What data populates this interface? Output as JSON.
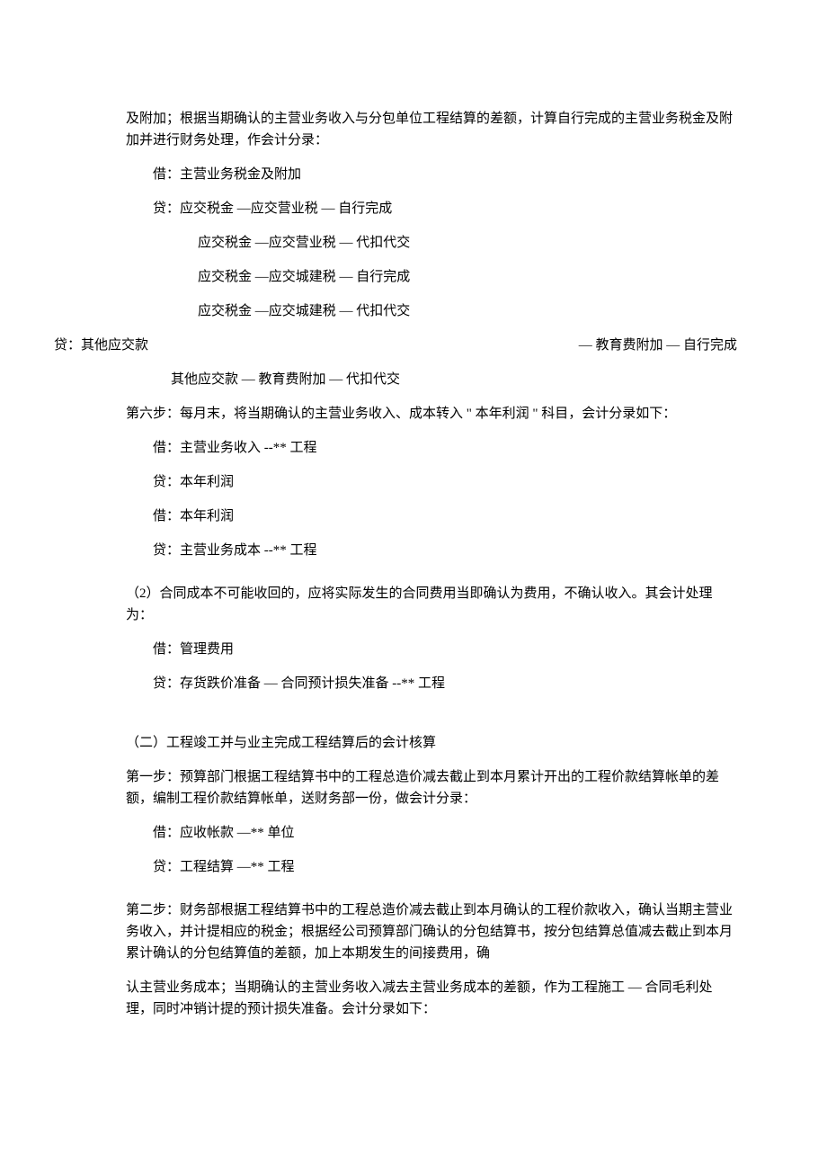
{
  "p1": "及附加；根据当期确认的主营业务收入与分包单位工程结算的差额，计算自行完成的主营业务税金及附加并进行财务处理，作会计分录：",
  "p2": "借：主营业务税金及附加",
  "p3": "贷：应交税金   —应交营业税  —  自行完成",
  "p4": "应交税金   —应交营业税   —  代扣代交",
  "p5": "应交税金   —应交城建税   —  自行完成",
  "p6": "应交税金   —应交城建税   —  代扣代交",
  "p7a": "贷：其他应交款",
  "p7b": "—  教育费附加    —  自行完成",
  "p8": "其他应交款   —  教育费附加     —  代扣代交",
  "p9": "第六步：每月末，将当期确认的主营业务收入、成本转入  \" 本年利润  \"  科目，会计分录如下：",
  "p10": "借：主营业务收入   --**   工程",
  "p11": "贷：本年利润",
  "p12": "借：本年利润",
  "p13": "贷：主营业务成本   --**   工程",
  "p14": "（2）合同成本不可能收回的，应将实际发生的合同费用当即确认为费用，不确认收入。其会计处理为：",
  "p15": "借：管理费用",
  "p16": "贷：存货跌价准备   — 合同预计损失准备  --**  工程",
  "p17": "（二）工程竣工并与业主完成工程结算后的会计核算",
  "p18": "第一步：预算部门根据工程结算书中的工程总造价减去截止到本月累计开出的工程价款结算帐单的差额，编制工程价款结算帐单，送财务部一份，做会计分录：",
  "p19": "借：应收帐款   —**  单位",
  "p20": "贷：工程结算   —**  工程",
  "p21": "第二步：财务部根据工程结算书中的工程总造价减去截止到本月确认的工程价款收入，确认当期主营业务收入，并计提相应的税金；根据经公司预算部门确认的分包结算书，按分包结算总值减去截止到本月累计确认的分包结算值的差额，加上本期发生的间接费用，确",
  "p22": "认主营业务成本；当期确认的主营业务收入减去主营业务成本的差额，作为工程施工  —  合同毛利处理，同时冲销计提的预计损失准备。会计分录如下："
}
